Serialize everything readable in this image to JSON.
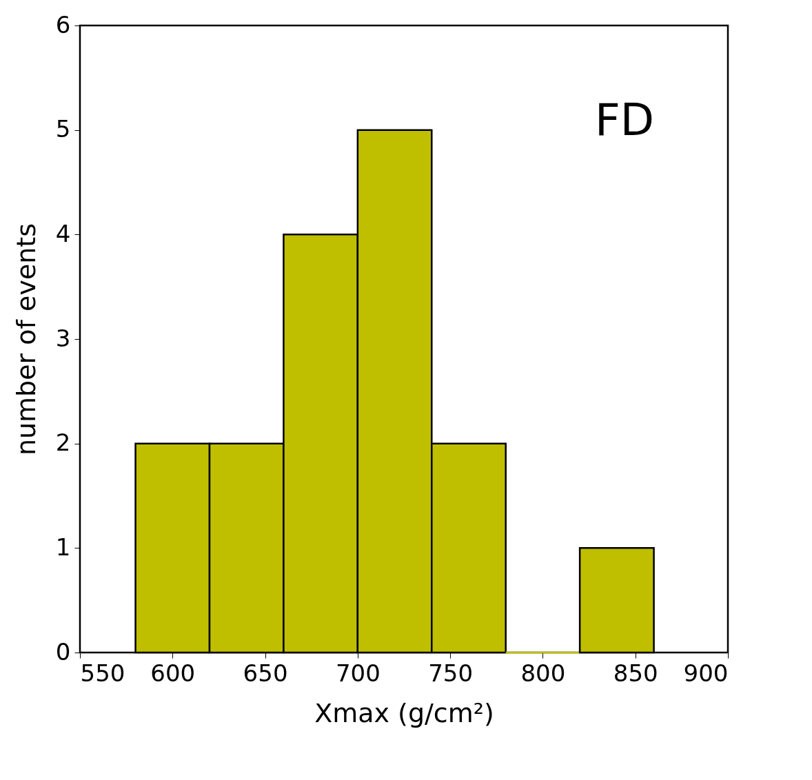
{
  "chart_data": {
    "type": "histogram",
    "xlabel": "Xmax (g/cm²)",
    "ylabel": "number of events",
    "bins": [
      580,
      620,
      660,
      700,
      740,
      780,
      820,
      860
    ],
    "values": [
      2,
      2,
      4,
      5,
      2,
      0,
      1
    ],
    "color": "#bfbf00",
    "xlim": [
      550,
      900
    ],
    "xticks": [
      550,
      600,
      650,
      700,
      750,
      800,
      850,
      900
    ],
    "ylim": [
      0,
      6
    ],
    "yticks": [
      0,
      1,
      2,
      3,
      4,
      5,
      6
    ],
    "grid": false,
    "annotations": [
      "FD"
    ]
  }
}
